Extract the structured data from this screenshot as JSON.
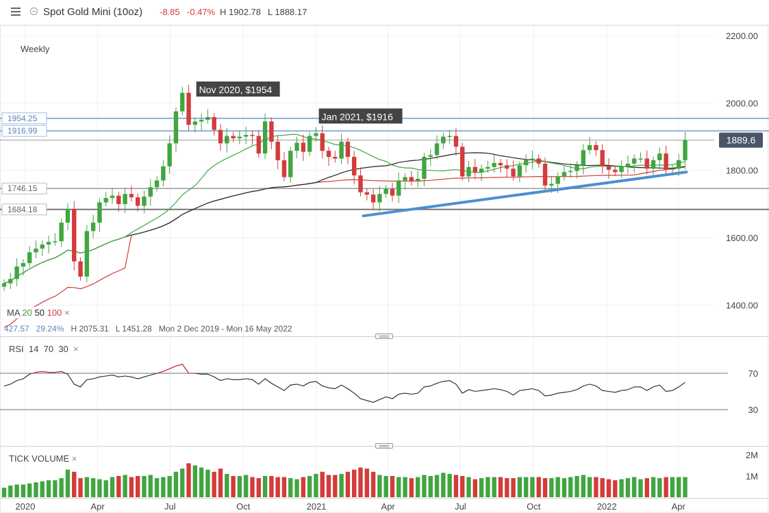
{
  "header": {
    "instrument": "Spot Gold Mini (10oz)",
    "change": "-8.85",
    "change_pct": "-0.47%",
    "high": "H 1902.78",
    "low": "L 1888.17"
  },
  "timeframe": "Weekly",
  "ma_legend": {
    "label": "MA",
    "p20": "20",
    "p50": "50",
    "p100": "100",
    "close": "×"
  },
  "stats": {
    "change": "427.57",
    "change_pct": "29.24%",
    "high": "H 2075.31",
    "low": "L 1451.28",
    "range": "Mon 2 Dec 2019 - Mon 16 May 2022"
  },
  "rsi_legend": {
    "label": "RSI",
    "p1": "14",
    "p2": "70",
    "p3": "30",
    "close": "×"
  },
  "volume_legend": {
    "label": "TICK VOLUME",
    "close": "×"
  },
  "colors": {
    "up": "#41a541",
    "down": "#d43b3b",
    "ma20": "#41a541",
    "ma50": "#222222",
    "ma100": "#d43b3b",
    "trend": "#4d8fd0",
    "level_blue": "#6b9bd4",
    "level_grey": "#999999",
    "price_tag": "#4a5568"
  },
  "chart_data": {
    "type": "candlestick",
    "ylim": [
      1310,
      2230
    ],
    "y_ticks": [
      "2200.00",
      "2000.00",
      "1800.00",
      "1600.00",
      "1400.00"
    ],
    "y_tick_values": [
      2200,
      2000,
      1800,
      1600,
      1400
    ],
    "x_ticks": [
      "2020",
      "Apr",
      "Jul",
      "Oct",
      "2021",
      "Apr",
      "Jul",
      "Oct",
      "2022",
      "Apr"
    ],
    "x_tick_dates": [
      "2020-01-01",
      "2020-04-01",
      "2020-07-01",
      "2020-10-01",
      "2021-01-01",
      "2021-04-01",
      "2021-07-01",
      "2021-10-01",
      "2022-01-01",
      "2022-04-01"
    ],
    "start_date": "2019-12-02",
    "end_date": "2022-05-16",
    "last_price": "1889.6",
    "horizontal_levels": [
      {
        "value": 1954.25,
        "label": "1954.25",
        "style": "blue"
      },
      {
        "value": 1916.99,
        "label": "1916.99",
        "style": "blue"
      },
      {
        "value": 1746.15,
        "label": "1746.15",
        "style": "grey"
      },
      {
        "value": 1684.18,
        "label": "1684.18",
        "style": "dark"
      }
    ],
    "annotations": [
      {
        "text": "Nov 2020, $1954",
        "date": "2020-08-03",
        "value": 2035
      },
      {
        "text": "Jan 2021, $1916",
        "date": "2021-01-04",
        "value": 1955
      }
    ],
    "trendline": {
      "from": {
        "date": "2021-03-01",
        "value": 1665
      },
      "to": {
        "date": "2022-04-11",
        "value": 1795
      }
    },
    "close": [
      1465,
      1478,
      1515,
      1525,
      1557,
      1568,
      1580,
      1588,
      1590,
      1645,
      1685,
      1530,
      1485,
      1620,
      1645,
      1705,
      1718,
      1725,
      1700,
      1730,
      1720,
      1695,
      1722,
      1750,
      1770,
      1812,
      1880,
      1975,
      2030,
      1935,
      1945,
      1950,
      1958,
      1920,
      1880,
      1902,
      1895,
      1900,
      1905,
      1902,
      1850,
      1945,
      1885,
      1830,
      1780,
      1858,
      1882,
      1855,
      1902,
      1910,
      1858,
      1840,
      1835,
      1885,
      1840,
      1785,
      1735,
      1728,
      1705,
      1730,
      1745,
      1725,
      1770,
      1780,
      1767,
      1775,
      1840,
      1845,
      1880,
      1900,
      1902,
      1870,
      1782,
      1810,
      1795,
      1805,
      1810,
      1822,
      1815,
      1805,
      1782,
      1815,
      1830,
      1835,
      1820,
      1755,
      1760,
      1782,
      1795,
      1798,
      1815,
      1860,
      1875,
      1860,
      1812,
      1802,
      1795,
      1812,
      1820,
      1835,
      1835,
      1805,
      1830,
      1850,
      1802,
      1805,
      1830,
      1889.6
    ],
    "rsi": [
      56,
      58,
      62,
      64,
      69,
      71,
      72,
      71,
      71,
      72,
      69,
      58,
      55,
      63,
      64,
      66,
      67,
      68,
      66,
      67,
      66,
      64,
      66,
      68,
      70,
      72,
      75,
      78,
      80,
      70,
      70,
      69,
      69,
      66,
      62,
      64,
      63,
      63,
      64,
      63,
      58,
      64,
      59,
      55,
      51,
      57,
      58,
      56,
      60,
      61,
      56,
      54,
      53,
      57,
      53,
      48,
      42,
      40,
      38,
      41,
      44,
      42,
      47,
      48,
      47,
      48,
      55,
      56,
      59,
      61,
      62,
      58,
      48,
      52,
      50,
      51,
      52,
      53,
      52,
      50,
      46,
      51,
      52,
      53,
      51,
      45,
      46,
      48,
      49,
      50,
      52,
      56,
      58,
      56,
      51,
      50,
      49,
      51,
      52,
      55,
      55,
      51,
      55,
      57,
      50,
      51,
      55,
      60
    ],
    "volume": [
      0.45,
      0.55,
      0.6,
      0.6,
      0.65,
      0.7,
      0.75,
      0.8,
      0.8,
      0.9,
      1.3,
      1.2,
      0.9,
      0.95,
      0.9,
      0.85,
      0.8,
      0.95,
      1.0,
      1.05,
      0.95,
      1.0,
      1.0,
      1.05,
      0.9,
      0.95,
      1.0,
      1.2,
      1.35,
      1.6,
      1.5,
      1.4,
      1.3,
      1.2,
      1.35,
      1.1,
      1.0,
      1.0,
      1.05,
      0.95,
      0.9,
      1.0,
      1.0,
      0.95,
      0.95,
      0.9,
      0.85,
      0.95,
      1.0,
      1.1,
      1.2,
      1.05,
      1.05,
      1.1,
      1.2,
      1.3,
      1.4,
      1.35,
      1.2,
      1.05,
      1.0,
      1.0,
      0.95,
      0.95,
      0.9,
      0.95,
      1.05,
      1.0,
      1.05,
      1.15,
      1.1,
      1.05,
      1.0,
      0.95,
      0.85,
      0.9,
      0.95,
      0.95,
      0.95,
      0.9,
      0.9,
      0.95,
      0.95,
      0.95,
      0.95,
      0.9,
      0.9,
      0.95,
      0.9,
      0.95,
      1.0,
      1.05,
      0.95,
      0.95,
      0.9,
      0.85,
      0.8,
      0.85,
      0.9,
      0.95,
      0.85,
      0.9,
      0.95,
      0.9,
      0.95,
      0.95,
      0.95,
      0.95
    ],
    "vol_ticks": [
      "2M",
      "1M"
    ],
    "vol_tick_values": [
      2.0,
      1.0
    ],
    "rsi_ticks": [
      "70",
      "30"
    ],
    "rsi_tick_values": [
      70,
      30
    ]
  }
}
